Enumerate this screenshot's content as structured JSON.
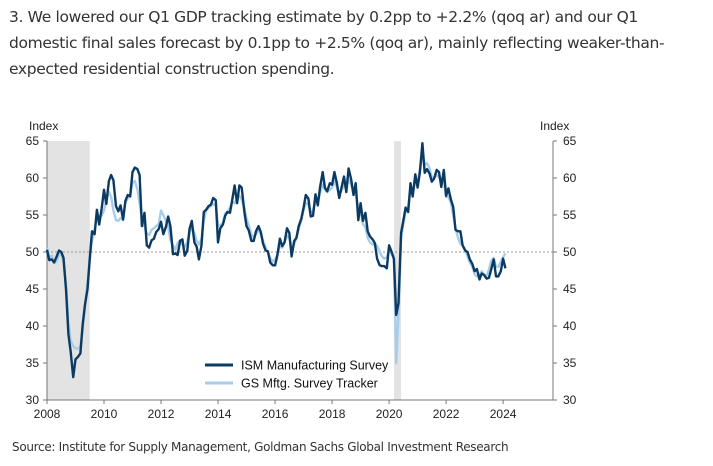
{
  "intro_text": "3. We lowered our Q1 GDP tracking estimate by 0.2pp to +2.2% (qoq ar) and our Q1 domestic final sales forecast by 0.1pp to +2.5% (qoq ar), mainly reflecting weaker-than-expected residential construction spending.",
  "source_text": "Source: Institute for Supply Management, Goldman Sachs Global Investment Research",
  "chart_data": {
    "type": "line",
    "title": "",
    "ylabel_left": "Index",
    "ylabel_right": "Index",
    "xlabel": "",
    "xlim": [
      2008,
      2025.75
    ],
    "ylim": [
      30,
      65
    ],
    "x_ticks": [
      "2008",
      "2010",
      "2012",
      "2014",
      "2016",
      "2018",
      "2020",
      "2022",
      "2024"
    ],
    "x_tick_values": [
      2008,
      2010,
      2012,
      2014,
      2016,
      2018,
      2020,
      2022,
      2024
    ],
    "y_ticks": [
      "30",
      "35",
      "40",
      "45",
      "50",
      "55",
      "60",
      "65"
    ],
    "y_tick_values": [
      30,
      35,
      40,
      45,
      50,
      55,
      60,
      65
    ],
    "reference_line": 50,
    "shaded_periods": [
      [
        2008.0,
        2009.5
      ],
      [
        2020.17,
        2020.42
      ]
    ],
    "legend": {
      "position": "bottom-center",
      "entries": [
        "ISM Manufacturing Survey",
        "GS Mftg. Survey Tracker"
      ]
    },
    "colors": {
      "ism": "#0b3a63",
      "gs": "#a8cdeb",
      "shade": "#e3e3e3",
      "axis": "#777777",
      "refline": "#999999"
    },
    "series": [
      {
        "name": "ISM Manufacturing Survey",
        "x": [
          2008.0,
          2008.08,
          2008.17,
          2008.25,
          2008.33,
          2008.42,
          2008.5,
          2008.58,
          2008.67,
          2008.75,
          2008.83,
          2008.92,
          2009.0,
          2009.08,
          2009.17,
          2009.25,
          2009.33,
          2009.42,
          2009.5,
          2009.58,
          2009.67,
          2009.75,
          2009.83,
          2009.92,
          2010.0,
          2010.08,
          2010.17,
          2010.25,
          2010.33,
          2010.42,
          2010.5,
          2010.58,
          2010.67,
          2010.75,
          2010.83,
          2010.92,
          2011.0,
          2011.08,
          2011.17,
          2011.25,
          2011.33,
          2011.42,
          2011.5,
          2011.58,
          2011.67,
          2011.75,
          2011.83,
          2011.92,
          2012.0,
          2012.08,
          2012.17,
          2012.25,
          2012.33,
          2012.42,
          2012.5,
          2012.58,
          2012.67,
          2012.75,
          2012.83,
          2012.92,
          2013.0,
          2013.08,
          2013.17,
          2013.25,
          2013.33,
          2013.42,
          2013.5,
          2013.58,
          2013.67,
          2013.75,
          2013.83,
          2013.92,
          2014.0,
          2014.08,
          2014.17,
          2014.25,
          2014.33,
          2014.42,
          2014.5,
          2014.58,
          2014.67,
          2014.75,
          2014.83,
          2014.92,
          2015.0,
          2015.08,
          2015.17,
          2015.25,
          2015.33,
          2015.42,
          2015.5,
          2015.58,
          2015.67,
          2015.75,
          2015.83,
          2015.92,
          2016.0,
          2016.08,
          2016.17,
          2016.25,
          2016.33,
          2016.42,
          2016.5,
          2016.58,
          2016.67,
          2016.75,
          2016.83,
          2016.92,
          2017.0,
          2017.08,
          2017.17,
          2017.25,
          2017.33,
          2017.42,
          2017.5,
          2017.58,
          2017.67,
          2017.75,
          2017.83,
          2017.92,
          2018.0,
          2018.08,
          2018.17,
          2018.25,
          2018.33,
          2018.42,
          2018.5,
          2018.58,
          2018.67,
          2018.75,
          2018.83,
          2018.92,
          2019.0,
          2019.08,
          2019.17,
          2019.25,
          2019.33,
          2019.42,
          2019.5,
          2019.58,
          2019.67,
          2019.75,
          2019.83,
          2019.92,
          2020.0,
          2020.08,
          2020.17,
          2020.25,
          2020.33,
          2020.42,
          2020.5,
          2020.58,
          2020.67,
          2020.75,
          2020.83,
          2020.92,
          2021.0,
          2021.08,
          2021.17,
          2021.25,
          2021.33,
          2021.42,
          2021.5,
          2021.58,
          2021.67,
          2021.75,
          2021.83,
          2021.92,
          2022.0,
          2022.08,
          2022.17,
          2022.25,
          2022.33,
          2022.42,
          2022.5,
          2022.58,
          2022.67,
          2022.75,
          2022.83,
          2022.92,
          2023.0,
          2023.08,
          2023.17,
          2023.25,
          2023.33,
          2023.42,
          2023.5,
          2023.58,
          2023.67,
          2023.75,
          2023.83,
          2023.92,
          2024.0,
          2024.08
        ],
        "y": [
          50.3,
          48.9,
          49.0,
          48.6,
          49.3,
          50.2,
          50.0,
          49.2,
          44.8,
          38.9,
          36.5,
          33.1,
          35.5,
          35.8,
          36.3,
          40.1,
          42.8,
          45.0,
          49.1,
          52.8,
          52.4,
          55.7,
          53.7,
          55.9,
          58.4,
          56.5,
          59.6,
          60.4,
          59.7,
          56.2,
          55.5,
          56.3,
          54.4,
          56.9,
          57.7,
          57.5,
          60.8,
          61.4,
          61.2,
          60.4,
          53.5,
          55.3,
          50.9,
          50.6,
          51.6,
          51.8,
          52.7,
          53.1,
          54.1,
          52.4,
          53.4,
          54.8,
          53.5,
          49.7,
          49.8,
          49.6,
          51.5,
          51.7,
          49.5,
          50.2,
          53.1,
          54.2,
          51.3,
          50.7,
          49.0,
          50.9,
          55.4,
          55.7,
          56.2,
          56.4,
          57.3,
          57.0,
          51.3,
          53.2,
          53.7,
          54.9,
          55.4,
          55.3,
          57.1,
          59.0,
          56.6,
          59.0,
          58.7,
          55.5,
          53.5,
          52.9,
          51.5,
          51.5,
          52.8,
          53.5,
          52.7,
          51.1,
          50.2,
          50.1,
          48.6,
          48.2,
          48.2,
          49.5,
          51.8,
          50.8,
          51.3,
          53.2,
          52.6,
          49.4,
          51.5,
          51.9,
          53.5,
          54.5,
          56.0,
          57.7,
          57.2,
          54.8,
          54.9,
          57.8,
          56.3,
          58.8,
          60.8,
          58.7,
          58.2,
          59.3,
          59.1,
          60.8,
          59.3,
          57.3,
          58.7,
          60.2,
          58.1,
          61.3,
          59.8,
          57.7,
          59.3,
          54.3,
          56.6,
          54.2,
          55.3,
          52.8,
          52.1,
          51.7,
          51.2,
          49.1,
          48.2,
          48.1,
          48.1,
          47.8,
          50.9,
          50.1,
          49.1,
          41.5,
          43.1,
          52.6,
          54.2,
          56.0,
          55.4,
          59.3,
          57.5,
          60.5,
          58.7,
          60.8,
          64.7,
          60.7,
          61.2,
          60.6,
          59.5,
          59.9,
          61.1,
          60.8,
          58.8,
          61.1,
          57.6,
          58.6,
          57.1,
          56.1,
          53.0,
          52.8,
          52.8,
          50.9,
          50.2,
          50.0,
          49.0,
          48.4,
          47.4,
          47.7,
          46.3,
          47.1,
          46.9,
          46.4,
          46.5,
          47.6,
          49.0,
          46.7,
          46.7,
          47.4,
          49.1,
          47.8
        ]
      },
      {
        "name": "GS Mftg. Survey Tracker",
        "x": [
          2008.0,
          2008.08,
          2008.17,
          2008.25,
          2008.33,
          2008.42,
          2008.5,
          2008.58,
          2008.67,
          2008.75,
          2008.83,
          2008.92,
          2009.0,
          2009.08,
          2009.17,
          2009.25,
          2009.33,
          2009.42,
          2009.5,
          2009.58,
          2009.67,
          2009.75,
          2009.83,
          2009.92,
          2010.0,
          2010.08,
          2010.17,
          2010.25,
          2010.33,
          2010.42,
          2010.5,
          2010.58,
          2010.67,
          2010.75,
          2010.83,
          2010.92,
          2011.0,
          2011.08,
          2011.17,
          2011.25,
          2011.33,
          2011.42,
          2011.5,
          2011.58,
          2011.67,
          2011.75,
          2011.83,
          2011.92,
          2012.0,
          2012.08,
          2012.17,
          2012.25,
          2012.33,
          2012.42,
          2012.5,
          2012.58,
          2012.67,
          2012.75,
          2012.83,
          2012.92,
          2013.0,
          2013.08,
          2013.17,
          2013.25,
          2013.33,
          2013.42,
          2013.5,
          2013.58,
          2013.67,
          2013.75,
          2013.83,
          2013.92,
          2014.0,
          2014.08,
          2014.17,
          2014.25,
          2014.33,
          2014.42,
          2014.5,
          2014.58,
          2014.67,
          2014.75,
          2014.83,
          2014.92,
          2015.0,
          2015.08,
          2015.17,
          2015.25,
          2015.33,
          2015.42,
          2015.5,
          2015.58,
          2015.67,
          2015.75,
          2015.83,
          2015.92,
          2016.0,
          2016.08,
          2016.17,
          2016.25,
          2016.33,
          2016.42,
          2016.5,
          2016.58,
          2016.67,
          2016.75,
          2016.83,
          2016.92,
          2017.0,
          2017.08,
          2017.17,
          2017.25,
          2017.33,
          2017.42,
          2017.5,
          2017.58,
          2017.67,
          2017.75,
          2017.83,
          2017.92,
          2018.0,
          2018.08,
          2018.17,
          2018.25,
          2018.33,
          2018.42,
          2018.5,
          2018.58,
          2018.67,
          2018.75,
          2018.83,
          2018.92,
          2019.0,
          2019.08,
          2019.17,
          2019.25,
          2019.33,
          2019.42,
          2019.5,
          2019.58,
          2019.67,
          2019.75,
          2019.83,
          2019.92,
          2020.0,
          2020.08,
          2020.17,
          2020.25,
          2020.33,
          2020.42,
          2020.5,
          2020.58,
          2020.67,
          2020.75,
          2020.83,
          2020.92,
          2021.0,
          2021.08,
          2021.17,
          2021.25,
          2021.33,
          2021.42,
          2021.5,
          2021.58,
          2021.67,
          2021.75,
          2021.83,
          2021.92,
          2022.0,
          2022.08,
          2022.17,
          2022.25,
          2022.33,
          2022.42,
          2022.5,
          2022.58,
          2022.67,
          2022.75,
          2022.83,
          2022.92,
          2023.0,
          2023.08,
          2023.17,
          2023.25,
          2023.33,
          2023.42,
          2023.5,
          2023.58,
          2023.67,
          2023.75,
          2023.83,
          2023.92,
          2024.0,
          2024.08
        ],
        "y": [
          50.6,
          49.2,
          49.5,
          48.5,
          48.7,
          49.6,
          49.8,
          48.6,
          45.5,
          40.5,
          38.0,
          37.3,
          37.0,
          36.9,
          37.3,
          39.5,
          42.5,
          45.8,
          49.5,
          51.5,
          53.0,
          54.6,
          54.8,
          54.9,
          55.6,
          57.0,
          58.1,
          57.5,
          55.6,
          54.3,
          54.2,
          54.6,
          54.3,
          56.7,
          57.2,
          57.8,
          59.4,
          59.6,
          58.5,
          56.6,
          54.5,
          53.4,
          52.5,
          52.3,
          53.0,
          53.2,
          53.5,
          53.8,
          55.6,
          55.0,
          54.2,
          53.4,
          51.6,
          50.9,
          50.3,
          51.2,
          51.6,
          51.0,
          50.7,
          51.4,
          52.6,
          53.3,
          52.5,
          51.5,
          51.0,
          51.8,
          54.3,
          55.6,
          56.0,
          56.2,
          56.5,
          56.3,
          53.6,
          53.6,
          53.9,
          55.2,
          55.4,
          56.0,
          56.8,
          56.6,
          57.2,
          57.6,
          57.1,
          56.0,
          54.5,
          53.6,
          52.4,
          51.9,
          52.4,
          53.0,
          52.4,
          51.5,
          50.6,
          49.9,
          49.2,
          48.7,
          49.0,
          49.6,
          50.8,
          50.6,
          51.3,
          52.2,
          51.9,
          50.4,
          51.1,
          51.9,
          53.1,
          54.3,
          55.7,
          56.6,
          56.4,
          55.3,
          55.6,
          56.8,
          56.8,
          58.0,
          59.1,
          58.4,
          58.1,
          58.4,
          58.7,
          59.6,
          58.7,
          57.8,
          58.3,
          59.0,
          58.8,
          59.8,
          59.1,
          58.0,
          58.1,
          55.7,
          55.4,
          53.8,
          53.3,
          51.9,
          51.3,
          51.0,
          51.2,
          50.8,
          50.0,
          49.4,
          49.1,
          49.3,
          50.2,
          49.8,
          49.1,
          35.0,
          41.6,
          51.9,
          53.8,
          55.4,
          56.2,
          58.4,
          58.1,
          59.5,
          59.3,
          61.2,
          63.3,
          61.8,
          62.0,
          61.3,
          60.1,
          60.0,
          60.4,
          60.1,
          59.6,
          59.8,
          57.4,
          57.5,
          56.6,
          55.0,
          53.2,
          51.9,
          51.1,
          50.9,
          50.3,
          49.4,
          48.6,
          48.0,
          47.0,
          46.7,
          46.8,
          47.4,
          46.9,
          46.8,
          47.6,
          48.8,
          49.2,
          48.0,
          48.0,
          48.7,
          49.3,
          49.8
        ]
      }
    ]
  }
}
